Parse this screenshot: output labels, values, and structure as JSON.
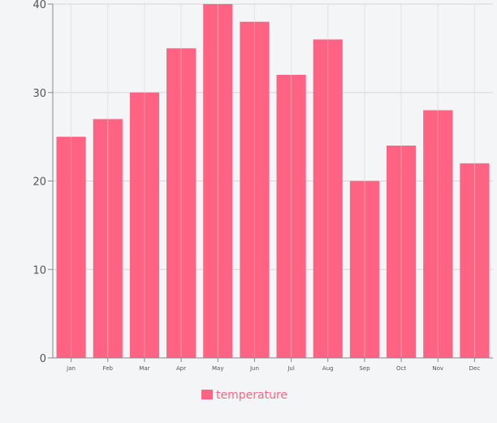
{
  "chart_data": {
    "type": "bar",
    "categories": [
      "Jan",
      "Feb",
      "Mar",
      "Apr",
      "May",
      "Jun",
      "Jul",
      "Aug",
      "Sep",
      "Oct",
      "Nov",
      "Dec"
    ],
    "series": [
      {
        "name": "temperature",
        "values": [
          25,
          27,
          30,
          35,
          40,
          38,
          32,
          36,
          20,
          24,
          28,
          22
        ],
        "color": "#ff6384"
      }
    ],
    "ylim": [
      0,
      40
    ],
    "yticks": [
      0,
      10,
      20,
      30,
      40
    ],
    "grid": true,
    "legend": "bottom-center"
  }
}
